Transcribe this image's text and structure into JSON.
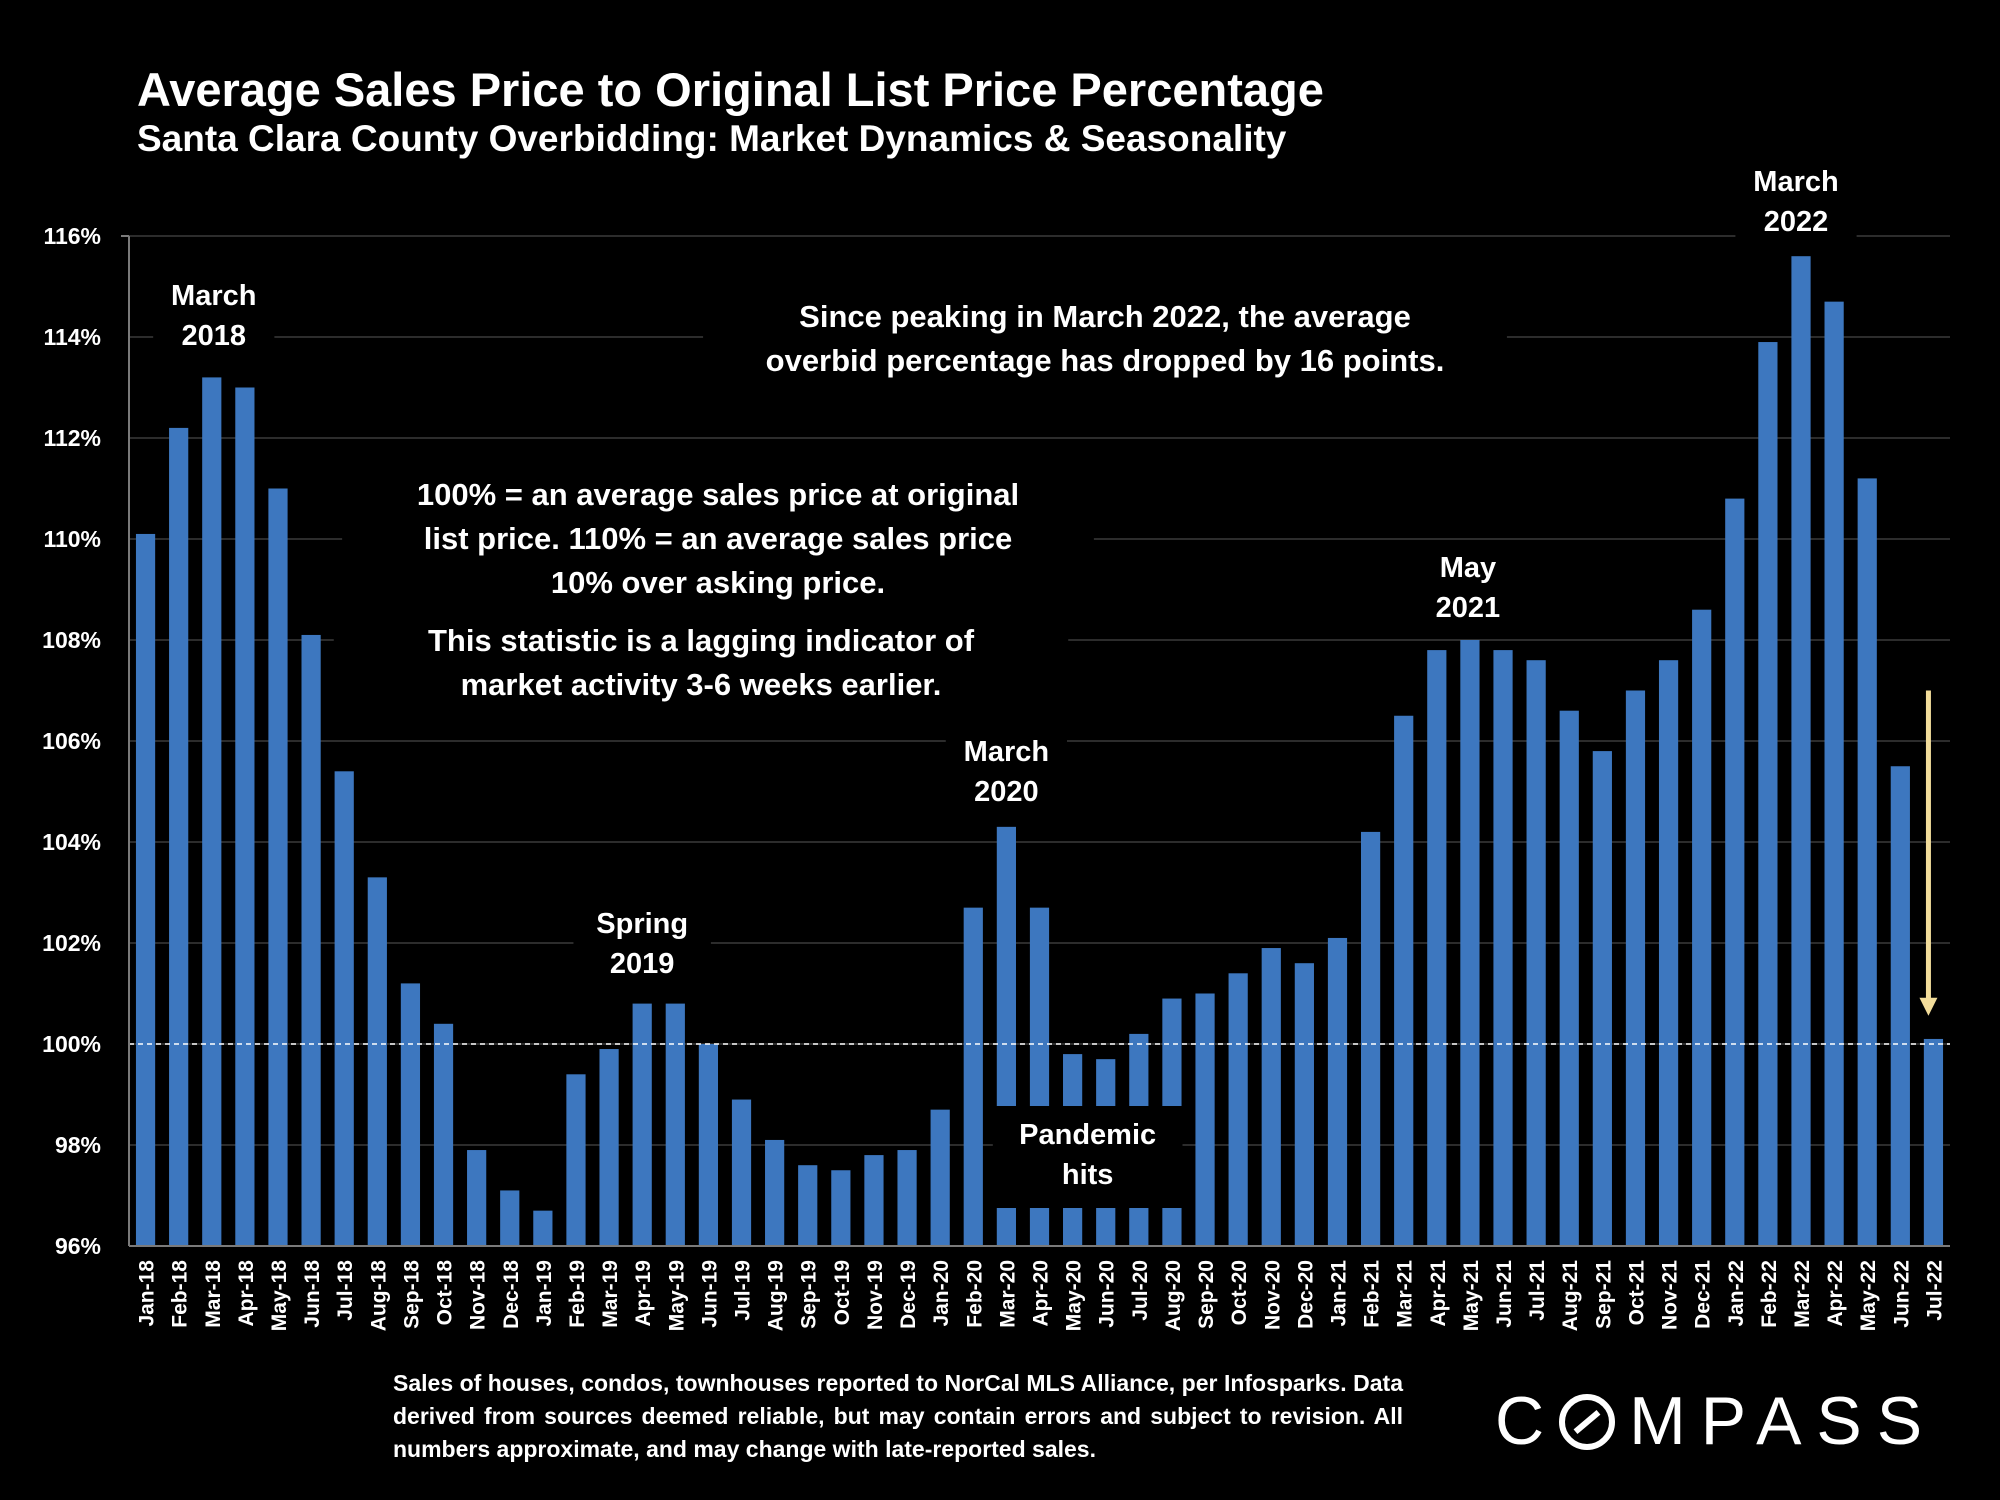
{
  "title": "Average Sales Price to Original List Price Percentage",
  "subtitle": "Santa Clara County Overbidding: Market Dynamics & Seasonality",
  "footnote": "Sales of houses, condos, townhouses reported to NorCal MLS Alliance, per Infosparks. Data derived from sources deemed reliable, but may contain errors and subject to revision. All numbers approximate, and may change with late-reported sales.",
  "logo": {
    "pre": "C",
    "post": "MPASS"
  },
  "colors": {
    "background": "#000000",
    "bar": "#3d77bf",
    "arrow": "#f2dc9a",
    "text": "#ffffff",
    "grid": "#3a3a3a"
  },
  "chart_data": {
    "type": "bar",
    "ylim": [
      96,
      116
    ],
    "yticks": [
      96,
      98,
      100,
      102,
      104,
      106,
      108,
      110,
      112,
      114,
      116
    ],
    "ytick_format": "%",
    "grid": true,
    "reference_line": 100,
    "categories": [
      "Jan-18",
      "Feb-18",
      "Mar-18",
      "Apr-18",
      "May-18",
      "Jun-18",
      "Jul-18",
      "Aug-18",
      "Sep-18",
      "Oct-18",
      "Nov-18",
      "Dec-18",
      "Jan-19",
      "Feb-19",
      "Mar-19",
      "Apr-19",
      "May-19",
      "Jun-19",
      "Jul-19",
      "Aug-19",
      "Sep-19",
      "Oct-19",
      "Nov-19",
      "Dec-19",
      "Jan-20",
      "Feb-20",
      "Mar-20",
      "Apr-20",
      "May-20",
      "Jun-20",
      "Jul-20",
      "Aug-20",
      "Sep-20",
      "Oct-20",
      "Nov-20",
      "Dec-20",
      "Jan-21",
      "Feb-21",
      "Mar-21",
      "Apr-21",
      "May-21",
      "Jun-21",
      "Jul-21",
      "Aug-21",
      "Sep-21",
      "Oct-21",
      "Nov-21",
      "Dec-21",
      "Jan-22",
      "Feb-22",
      "Mar-22",
      "Apr-22",
      "May-22",
      "Jun-22",
      "Jul-22"
    ],
    "values": [
      110.1,
      112.2,
      113.2,
      113.0,
      111.0,
      108.1,
      105.4,
      103.3,
      101.2,
      100.4,
      97.9,
      97.1,
      96.7,
      99.4,
      99.9,
      100.8,
      100.8,
      100.0,
      98.9,
      98.1,
      97.6,
      97.5,
      97.8,
      97.9,
      98.7,
      102.7,
      104.3,
      102.7,
      99.8,
      99.7,
      100.2,
      100.9,
      101.0,
      101.4,
      101.9,
      101.6,
      102.1,
      104.2,
      106.5,
      107.8,
      108.0,
      107.8,
      107.6,
      106.6,
      105.8,
      107.0,
      107.6,
      108.6,
      110.8,
      113.9,
      115.6,
      114.7,
      111.2,
      105.5,
      100.1
    ],
    "annotations": [
      {
        "id": "march-2018",
        "lines": [
          "March",
          "2018"
        ],
        "category": "Mar-18"
      },
      {
        "id": "spring-2019",
        "lines": [
          "Spring",
          "2019"
        ],
        "category": "Apr-19"
      },
      {
        "id": "march-2020",
        "lines": [
          "March",
          "2020"
        ],
        "category": "Mar-20"
      },
      {
        "id": "may-2021",
        "lines": [
          "May",
          "2021"
        ],
        "category": "May-21"
      },
      {
        "id": "march-2022",
        "lines": [
          "March",
          "2022"
        ],
        "category": "Mar-22"
      },
      {
        "id": "pandemic-hits",
        "lines": [
          "Pandemic",
          "hits"
        ],
        "category": "Jun-20"
      },
      {
        "id": "peak-drop-note",
        "lines": [
          "Since peaking in March 2022, the average",
          "overbid percentage has dropped by 16 points."
        ]
      },
      {
        "id": "definition-note",
        "lines": [
          "100% = an average sales price at original",
          "list price. 110% = an average sales price",
          "10% over asking price."
        ]
      },
      {
        "id": "lagging-note",
        "lines": [
          "This statistic is a lagging indicator of",
          "market activity 3-6 weeks earlier."
        ]
      }
    ],
    "arrow": {
      "category": "Jul-22",
      "from": 107.0,
      "to": 100.6
    }
  }
}
